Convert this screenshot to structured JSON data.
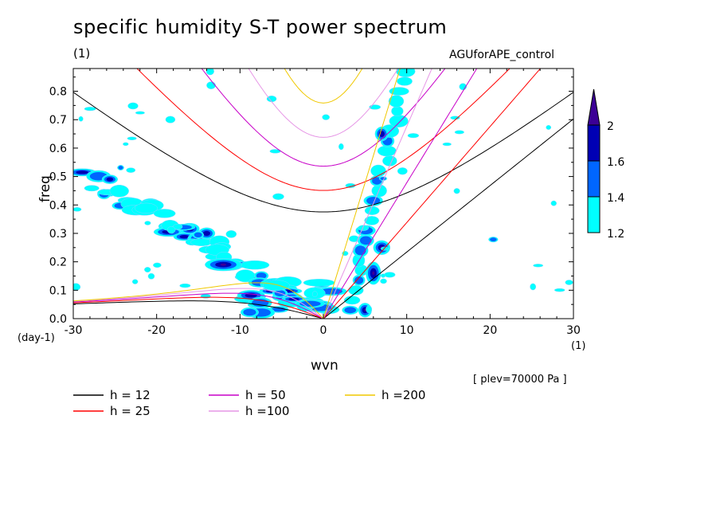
{
  "title": "specific humidity S-T power spectrum",
  "unit_label": "(1)",
  "experiment": "AGUforAPE_control",
  "plev_note": "[ plev=70000 Pa ]",
  "colors": {
    "c1": "#00ffff",
    "c2": "#0066ff",
    "c3": "#0000b4",
    "c4": "#3c0096",
    "black": "#000000",
    "red": "#ff0000",
    "magenta": "#c800c8",
    "pink": "#e696e6",
    "yellow": "#f0c800"
  },
  "chart_data": {
    "type": "heatmap",
    "title": "specific humidity S-T power spectrum",
    "xlabel": "wvn",
    "xunit": "(1)",
    "ylabel": "freq",
    "yunit": "(day-1)",
    "xlim": [
      -30,
      30
    ],
    "ylim": [
      0,
      0.88
    ],
    "xticks": [
      -30,
      -20,
      -10,
      0,
      10,
      20,
      30
    ],
    "yticks": [
      0.0,
      0.1,
      0.2,
      0.3,
      0.4,
      0.5,
      0.6,
      0.7,
      0.8
    ],
    "colorbar": {
      "levels": [
        "1.2",
        "1.4",
        "1.6",
        "2"
      ],
      "extend": "max"
    },
    "legend": [
      {
        "label": "h = 12",
        "depth": 12,
        "color": "black"
      },
      {
        "label": "h = 25",
        "depth": 25,
        "color": "red"
      },
      {
        "label": "h = 50",
        "depth": 50,
        "color": "magenta"
      },
      {
        "label": "h =100",
        "depth": 100,
        "color": "pink"
      },
      {
        "label": "h =200",
        "depth": 200,
        "color": "yellow"
      }
    ],
    "dispersion_curves": [
      "kelvin",
      "equatorial_rossby_n1",
      "inertia_gravity_n1"
    ],
    "power_features": [
      {
        "name": "Kelvin wave ridge",
        "wvn": [
          3,
          10
        ],
        "freq": [
          0.02,
          0.88
        ],
        "max_level": "2"
      },
      {
        "name": "Kelvin peak k6",
        "wvn": 6,
        "freq": 0.16,
        "level": "2"
      },
      {
        "name": "Kelvin peak k7",
        "wvn": 7,
        "freq": 0.25,
        "level": "2"
      },
      {
        "name": "Low-frequency peak k5",
        "wvn": 5,
        "freq": 0.03,
        "level": "2"
      },
      {
        "name": "Westward diagonal band",
        "wvn": [
          -30,
          -2
        ],
        "freq": [
          0.5,
          0.05
        ],
        "max_level": "2"
      },
      {
        "name": "Westward peak",
        "wvn": -12,
        "freq": 0.19,
        "level": "2"
      }
    ]
  }
}
